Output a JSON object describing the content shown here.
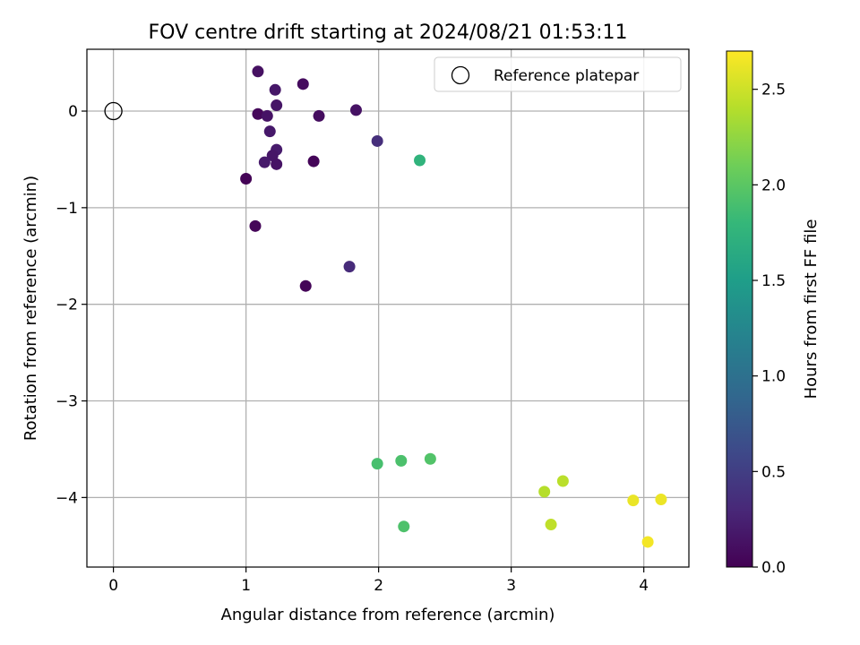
{
  "chart_data": {
    "type": "scatter",
    "title": "FOV centre drift starting at 2024/08/21 01:53:11",
    "xlabel": "Angular distance from reference (arcmin)",
    "ylabel": "Rotation from reference (arcmin)",
    "xlim": [
      -0.2,
      4.34
    ],
    "ylim": [
      -4.72,
      0.64
    ],
    "xticks": [
      0,
      1,
      2,
      3,
      4
    ],
    "xtick_labels": [
      "0",
      "1",
      "2",
      "3",
      "4"
    ],
    "yticks": [
      0,
      -1,
      -2,
      -3,
      -4
    ],
    "ytick_labels": [
      "0",
      "−1",
      "−2",
      "−3",
      "−4"
    ],
    "grid": true,
    "legend": {
      "placement": "top-right",
      "label": "Reference platepar",
      "marker": "open-circle"
    },
    "reference_point": {
      "x": 0,
      "y": 0
    },
    "colorbar": {
      "label": "Hours from first FF file",
      "range": [
        0.0,
        2.7
      ],
      "ticks": [
        0.0,
        0.5,
        1.0,
        1.5,
        2.0,
        2.5
      ],
      "tick_labels": [
        "0.0",
        "0.5",
        "1.0",
        "1.5",
        "2.0",
        "2.5"
      ],
      "colormap": "viridis",
      "colors": [
        "#440154",
        "#482878",
        "#3e4989",
        "#31688e",
        "#26828e",
        "#1f9e89",
        "#35b779",
        "#6ece58",
        "#b5de2b",
        "#fde725"
      ]
    },
    "points": [
      {
        "x": 1.09,
        "y": 0.41,
        "t": 0.12
      },
      {
        "x": 1.22,
        "y": 0.22,
        "t": 0.17
      },
      {
        "x": 1.43,
        "y": 0.28,
        "t": 0.08
      },
      {
        "x": 1.23,
        "y": 0.06,
        "t": 0.15
      },
      {
        "x": 1.09,
        "y": -0.03,
        "t": 0.05
      },
      {
        "x": 1.16,
        "y": -0.05,
        "t": 0.14
      },
      {
        "x": 1.55,
        "y": -0.05,
        "t": 0.09
      },
      {
        "x": 1.83,
        "y": 0.01,
        "t": 0.13
      },
      {
        "x": 1.99,
        "y": -0.31,
        "t": 0.36
      },
      {
        "x": 1.18,
        "y": -0.21,
        "t": 0.18
      },
      {
        "x": 1.23,
        "y": -0.4,
        "t": 0.2
      },
      {
        "x": 1.2,
        "y": -0.46,
        "t": 0.16
      },
      {
        "x": 1.14,
        "y": -0.53,
        "t": 0.19
      },
      {
        "x": 1.23,
        "y": -0.55,
        "t": 0.14
      },
      {
        "x": 1.51,
        "y": -0.52,
        "t": 0.03
      },
      {
        "x": 2.31,
        "y": -0.51,
        "t": 1.75
      },
      {
        "x": 1.0,
        "y": -0.7,
        "t": 0.02
      },
      {
        "x": 1.07,
        "y": -1.19,
        "t": 0.04
      },
      {
        "x": 1.78,
        "y": -1.61,
        "t": 0.33
      },
      {
        "x": 1.45,
        "y": -1.81,
        "t": 0.03
      },
      {
        "x": 1.99,
        "y": -3.65,
        "t": 1.9
      },
      {
        "x": 2.17,
        "y": -3.62,
        "t": 1.92
      },
      {
        "x": 2.39,
        "y": -3.6,
        "t": 1.95
      },
      {
        "x": 2.19,
        "y": -4.3,
        "t": 1.93
      },
      {
        "x": 3.25,
        "y": -3.94,
        "t": 2.4
      },
      {
        "x": 3.39,
        "y": -3.83,
        "t": 2.42
      },
      {
        "x": 3.3,
        "y": -4.28,
        "t": 2.44
      },
      {
        "x": 3.92,
        "y": -4.03,
        "t": 2.62
      },
      {
        "x": 4.13,
        "y": -4.02,
        "t": 2.63
      },
      {
        "x": 4.03,
        "y": -4.46,
        "t": 2.66
      }
    ]
  }
}
